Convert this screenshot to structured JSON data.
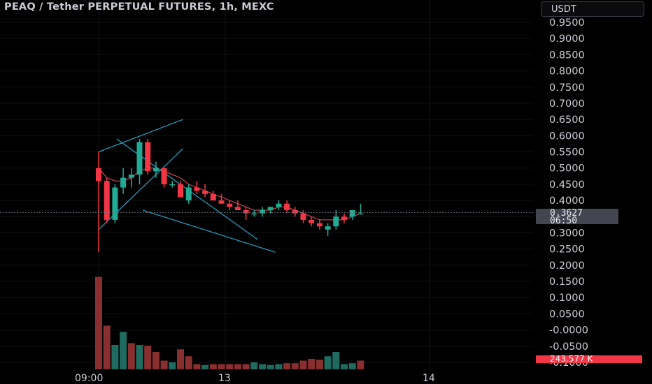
{
  "header": {
    "title": "PEAQ / Tether PERPETUAL FUTURES, 1h, MEXC",
    "currency_button": "USDT"
  },
  "price_axis": {
    "labels": [
      "0.9500",
      "0.9000",
      "0.8500",
      "0.8000",
      "0.7500",
      "0.7000",
      "0.6500",
      "0.6000",
      "0.5500",
      "0.5000",
      "0.4500",
      "0.4000",
      "0.3500",
      "0.3000",
      "0.2500",
      "0.2000",
      "0.1500",
      "0.1000",
      "0.0500",
      "-0.0000",
      "-0.0500",
      "-0.1000"
    ],
    "current_price": "0.3627",
    "countdown": "06:50",
    "volume_label": "243.577 K"
  },
  "time_axis": {
    "labels": [
      "09:00",
      "13",
      "14"
    ]
  },
  "colors": {
    "up": "#22ab94",
    "down": "#f23645",
    "trendline": "#26a6c6",
    "ma": "#f0505a",
    "vol_up": "#1f6b60",
    "vol_down": "#8a2f2f"
  },
  "chart_data": {
    "type": "candlestick",
    "symbol": "PEAQ / Tether PERPETUAL FUTURES",
    "interval": "1h",
    "exchange": "MEXC",
    "last_price": 0.3627,
    "y_range": [
      -0.1,
      0.95
    ],
    "candles": [
      {
        "o": 0.5,
        "h": 0.55,
        "l": 0.24,
        "c": 0.46
      },
      {
        "o": 0.46,
        "h": 0.47,
        "l": 0.33,
        "c": 0.34
      },
      {
        "o": 0.34,
        "h": 0.45,
        "l": 0.33,
        "c": 0.44
      },
      {
        "o": 0.44,
        "h": 0.5,
        "l": 0.42,
        "c": 0.47
      },
      {
        "o": 0.47,
        "h": 0.5,
        "l": 0.44,
        "c": 0.48
      },
      {
        "o": 0.48,
        "h": 0.59,
        "l": 0.45,
        "c": 0.58
      },
      {
        "o": 0.58,
        "h": 0.59,
        "l": 0.48,
        "c": 0.49
      },
      {
        "o": 0.49,
        "h": 0.52,
        "l": 0.47,
        "c": 0.5
      },
      {
        "o": 0.5,
        "h": 0.5,
        "l": 0.44,
        "c": 0.45
      },
      {
        "o": 0.45,
        "h": 0.46,
        "l": 0.44,
        "c": 0.45
      },
      {
        "o": 0.45,
        "h": 0.46,
        "l": 0.41,
        "c": 0.41
      },
      {
        "o": 0.4,
        "h": 0.45,
        "l": 0.39,
        "c": 0.44
      },
      {
        "o": 0.44,
        "h": 0.46,
        "l": 0.42,
        "c": 0.43
      },
      {
        "o": 0.43,
        "h": 0.45,
        "l": 0.41,
        "c": 0.42
      },
      {
        "o": 0.42,
        "h": 0.43,
        "l": 0.4,
        "c": 0.4
      },
      {
        "o": 0.4,
        "h": 0.42,
        "l": 0.39,
        "c": 0.39
      },
      {
        "o": 0.39,
        "h": 0.4,
        "l": 0.37,
        "c": 0.38
      },
      {
        "o": 0.38,
        "h": 0.4,
        "l": 0.37,
        "c": 0.37
      },
      {
        "o": 0.37,
        "h": 0.38,
        "l": 0.34,
        "c": 0.36
      },
      {
        "o": 0.36,
        "h": 0.37,
        "l": 0.35,
        "c": 0.36
      },
      {
        "o": 0.36,
        "h": 0.38,
        "l": 0.35,
        "c": 0.37
      },
      {
        "o": 0.37,
        "h": 0.38,
        "l": 0.36,
        "c": 0.38
      },
      {
        "o": 0.38,
        "h": 0.4,
        "l": 0.37,
        "c": 0.39
      },
      {
        "o": 0.39,
        "h": 0.4,
        "l": 0.36,
        "c": 0.37
      },
      {
        "o": 0.37,
        "h": 0.38,
        "l": 0.35,
        "c": 0.36
      },
      {
        "o": 0.36,
        "h": 0.37,
        "l": 0.33,
        "c": 0.34
      },
      {
        "o": 0.34,
        "h": 0.35,
        "l": 0.32,
        "c": 0.33
      },
      {
        "o": 0.33,
        "h": 0.34,
        "l": 0.31,
        "c": 0.32
      },
      {
        "o": 0.31,
        "h": 0.33,
        "l": 0.29,
        "c": 0.32
      },
      {
        "o": 0.32,
        "h": 0.37,
        "l": 0.31,
        "c": 0.35
      },
      {
        "o": 0.35,
        "h": 0.36,
        "l": 0.33,
        "c": 0.34
      },
      {
        "o": 0.35,
        "h": 0.37,
        "l": 0.34,
        "c": 0.37
      },
      {
        "o": 0.36,
        "h": 0.39,
        "l": 0.36,
        "c": 0.36
      }
    ],
    "volume": [
      {
        "v": 1.06,
        "up": false
      },
      {
        "v": 0.5,
        "up": false
      },
      {
        "v": 0.28,
        "up": true
      },
      {
        "v": 0.43,
        "up": true
      },
      {
        "v": 0.3,
        "up": false
      },
      {
        "v": 0.28,
        "up": true
      },
      {
        "v": 0.27,
        "up": false
      },
      {
        "v": 0.2,
        "up": false
      },
      {
        "v": 0.1,
        "up": false
      },
      {
        "v": 0.08,
        "up": true
      },
      {
        "v": 0.23,
        "up": false
      },
      {
        "v": 0.15,
        "up": false
      },
      {
        "v": 0.06,
        "up": false
      },
      {
        "v": 0.05,
        "up": true
      },
      {
        "v": 0.06,
        "up": false
      },
      {
        "v": 0.06,
        "up": false
      },
      {
        "v": 0.06,
        "up": false
      },
      {
        "v": 0.06,
        "up": false
      },
      {
        "v": 0.06,
        "up": false
      },
      {
        "v": 0.08,
        "up": true
      },
      {
        "v": 0.06,
        "up": true
      },
      {
        "v": 0.05,
        "up": true
      },
      {
        "v": 0.06,
        "up": true
      },
      {
        "v": 0.07,
        "up": false
      },
      {
        "v": 0.07,
        "up": false
      },
      {
        "v": 0.1,
        "up": false
      },
      {
        "v": 0.12,
        "up": false
      },
      {
        "v": 0.11,
        "up": false
      },
      {
        "v": 0.15,
        "up": true
      },
      {
        "v": 0.2,
        "up": true
      },
      {
        "v": 0.06,
        "up": true
      },
      {
        "v": 0.07,
        "up": true
      },
      {
        "v": 0.1,
        "up": false
      }
    ],
    "moving_average": [
      0.5,
      0.47,
      0.46,
      0.46,
      0.47,
      0.49,
      0.5,
      0.5,
      0.49,
      0.48,
      0.47,
      0.45,
      0.44,
      0.43,
      0.42,
      0.41,
      0.4,
      0.39,
      0.38,
      0.37,
      0.37,
      0.37,
      0.38,
      0.38,
      0.37,
      0.36,
      0.35,
      0.34,
      0.34,
      0.34,
      0.34,
      0.35,
      0.36
    ],
    "trendlines": [
      {
        "from": [
          0,
          0.55
        ],
        "to": [
          10.3,
          0.65
        ]
      },
      {
        "from": [
          0,
          0.31
        ],
        "to": [
          10.3,
          0.56
        ]
      },
      {
        "from": [
          2.2,
          0.59
        ],
        "to": [
          19.4,
          0.28
        ]
      },
      {
        "from": [
          5.4,
          0.37
        ],
        "to": [
          21.6,
          0.24
        ]
      }
    ]
  }
}
